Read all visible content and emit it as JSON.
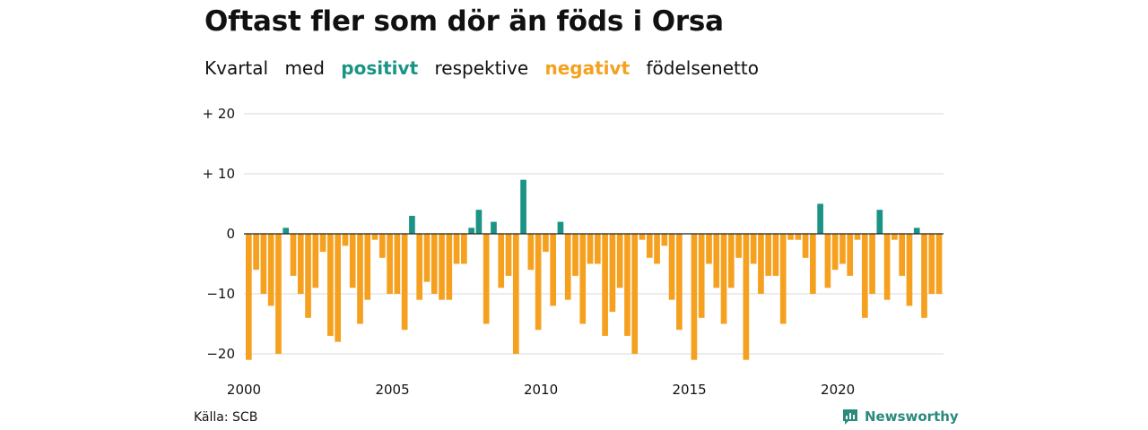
{
  "title": "Oftast fler som dör än föds i Orsa",
  "subtitle": {
    "part1": "Kvartal",
    "part2": "med",
    "positive_word": "positivt",
    "part3": "respektive",
    "negative_word": "negativt",
    "part4": "födelsenetto"
  },
  "source": "Källa: SCB",
  "brand": "Newsworthy",
  "colors": {
    "positive": "#1b9485",
    "negative": "#f5a11f",
    "grid": "#d9d9d9",
    "zero": "#222222"
  },
  "chart_data": {
    "type": "bar",
    "title": "Oftast fler som dör än föds i Orsa",
    "subtitle": "Kvartal med positivt respektive negativt födelsenetto",
    "xlabel": "",
    "ylabel": "",
    "ylim": [
      -21,
      20
    ],
    "yticks": [
      {
        "value": 20,
        "label": "+ 20"
      },
      {
        "value": 10,
        "label": "+ 10"
      },
      {
        "value": 0,
        "label": "0"
      },
      {
        "value": -10,
        "label": "−10"
      },
      {
        "value": -20,
        "label": "−20"
      }
    ],
    "xticks": [
      {
        "value": 2000,
        "label": "2000"
      },
      {
        "value": 2005,
        "label": "2005"
      },
      {
        "value": 2010,
        "label": "2010"
      },
      {
        "value": 2015,
        "label": "2015"
      },
      {
        "value": 2020,
        "label": "2020"
      }
    ],
    "x_start": 2000,
    "values": [
      -21,
      -6,
      -10,
      -12,
      -20,
      1,
      -7,
      -10,
      -14,
      -9,
      -3,
      -17,
      -18,
      -2,
      -9,
      -15,
      -11,
      -1,
      -4,
      -10,
      -10,
      -16,
      3,
      -11,
      -8,
      -10,
      -11,
      -11,
      -5,
      -5,
      1,
      4,
      -15,
      2,
      -9,
      -7,
      -20,
      9,
      -6,
      -16,
      -3,
      -12,
      2,
      -11,
      -7,
      -15,
      -5,
      -5,
      -17,
      -13,
      -9,
      -17,
      -20,
      -1,
      -4,
      -5,
      -2,
      -11,
      -16,
      0,
      -21,
      -14,
      -5,
      -9,
      -15,
      -9,
      -4,
      -21,
      -5,
      -10,
      -7,
      -7,
      -15,
      -1,
      -1,
      -4,
      -10,
      5,
      -9,
      -6,
      -5,
      -7,
      -1,
      -14,
      -10,
      4,
      -11,
      -1,
      -7,
      -12,
      1,
      -14,
      -10,
      -10
    ]
  }
}
